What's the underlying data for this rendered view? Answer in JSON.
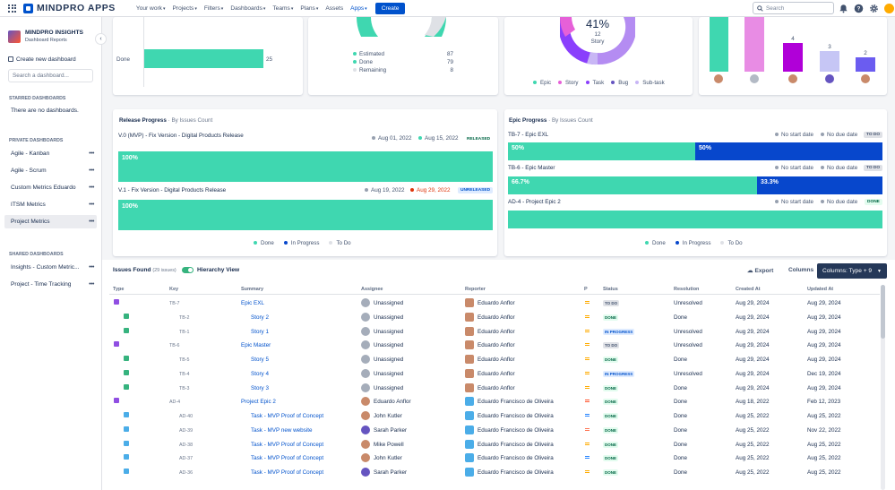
{
  "topbar": {
    "brand": "MINDPRO APPS",
    "nav": [
      "Your work",
      "Projects",
      "Filters",
      "Dashboards",
      "Teams",
      "Plans",
      "Assets",
      "Apps"
    ],
    "create": "Create",
    "search": "Search"
  },
  "sidebar": {
    "title": "MINDPRO INSIGHTS",
    "subtitle": "Dashboard Reports",
    "new_dashboard": "Create new dashboard",
    "search_placeholder": "Search a dashboard...",
    "starred_title": "STARRED DASHBOARDS",
    "starred_empty": "There are no dashboards.",
    "private_title": "PRIVATE DASHBOARDS",
    "private_items": [
      "Agile - Kanban",
      "Agile - Scrum",
      "Custom Metrics Eduardo",
      "ITSM Metrics",
      "Project Metrics"
    ],
    "shared_title": "SHARED DASHBOARDS",
    "shared_items": [
      "Insights - Custom Metric...",
      "Project - Time Tracking"
    ]
  },
  "top_cards": {
    "done_label": "Done",
    "done_value": "25",
    "gauge_legend": [
      {
        "label": "Estimated",
        "value": "87"
      },
      {
        "label": "Done",
        "value": "79"
      },
      {
        "label": "Remaining",
        "value": "8"
      }
    ],
    "donut": {
      "percent": "41%",
      "count": "12",
      "label": "Story",
      "legend": [
        "Epic",
        "Story",
        "Task",
        "Bug",
        "Sub-task"
      ]
    },
    "bars": {
      "values": [
        "4",
        "3",
        "2"
      ]
    }
  },
  "release": {
    "title": "Release Progress",
    "by": "· By Issues Count",
    "items": [
      {
        "name": "V.0 (MVP) - Fix Version - Digital Products Release",
        "start": "Aug 01, 2022",
        "end": "Aug 15, 2022",
        "status": "RELEASED",
        "pct": "100%"
      },
      {
        "name": "V.1 - Fix Version - Digital Products Release",
        "start": "Aug 19, 2022",
        "end": "Aug 29, 2022",
        "status": "UNRELEASED",
        "pct": "100%"
      }
    ],
    "legend": [
      "Done",
      "In Progress",
      "To Do"
    ]
  },
  "epic": {
    "title": "Epic Progress",
    "by": "· By Issues Count",
    "items": [
      {
        "name": "TB-7 - Epic EXL",
        "start": "No start date",
        "end": "No due date",
        "status": "TO DO",
        "done": "50%",
        "prog": "50%"
      },
      {
        "name": "TB-6 - Epic Master",
        "start": "No start date",
        "end": "No due date",
        "status": "TO DO",
        "done": "66.7%",
        "prog": "33.3%"
      },
      {
        "name": "AD-4 - Project Epic 2",
        "start": "No start date",
        "end": "No due date",
        "status": "DONE",
        "done": "",
        "prog": ""
      }
    ],
    "legend": [
      "Done",
      "In Progress",
      "To Do"
    ]
  },
  "issues": {
    "title": "Issues Found",
    "count": "(29 issues)",
    "hierarchy": "Hierarchy View",
    "export": "Export",
    "columns": "Columns",
    "columns_btn": "Columns: Type + 9",
    "headers": [
      "Type",
      "Key",
      "Summary",
      "Assignee",
      "Reporter",
      "P",
      "Status",
      "Resolution",
      "Created At",
      "Updated At"
    ],
    "rows": [
      {
        "type": "epic",
        "key": "TB-7",
        "summary": "Epic EXL",
        "indent": 0,
        "assignee": "Unassigned",
        "reporter": "Eduardo Anflor",
        "prio": "medium",
        "status": "TO DO",
        "resolution": "Unresolved",
        "created": "Aug 29, 2024",
        "updated": "Aug 29, 2024"
      },
      {
        "type": "story",
        "key": "TB-2",
        "summary": "Story 2",
        "indent": 1,
        "assignee": "Unassigned",
        "reporter": "Eduardo Anflor",
        "prio": "medium",
        "status": "DONE",
        "resolution": "Done",
        "created": "Aug 29, 2024",
        "updated": "Aug 29, 2024"
      },
      {
        "type": "story",
        "key": "TB-1",
        "summary": "Story 1",
        "indent": 1,
        "assignee": "Unassigned",
        "reporter": "Eduardo Anflor",
        "prio": "medium",
        "status": "IN PROGRESS",
        "resolution": "Unresolved",
        "created": "Aug 29, 2024",
        "updated": "Aug 29, 2024"
      },
      {
        "type": "epic",
        "key": "TB-6",
        "summary": "Epic Master",
        "indent": 0,
        "assignee": "Unassigned",
        "reporter": "Eduardo Anflor",
        "prio": "medium",
        "status": "TO DO",
        "resolution": "Unresolved",
        "created": "Aug 29, 2024",
        "updated": "Aug 29, 2024"
      },
      {
        "type": "story",
        "key": "TB-5",
        "summary": "Story 5",
        "indent": 1,
        "assignee": "Unassigned",
        "reporter": "Eduardo Anflor",
        "prio": "medium",
        "status": "DONE",
        "resolution": "Done",
        "created": "Aug 29, 2024",
        "updated": "Aug 29, 2024"
      },
      {
        "type": "story",
        "key": "TB-4",
        "summary": "Story 4",
        "indent": 1,
        "assignee": "Unassigned",
        "reporter": "Eduardo Anflor",
        "prio": "medium",
        "status": "IN PROGRESS",
        "resolution": "Unresolved",
        "created": "Aug 29, 2024",
        "updated": "Dec 19, 2024"
      },
      {
        "type": "story",
        "key": "TB-3",
        "summary": "Story 3",
        "indent": 1,
        "assignee": "Unassigned",
        "reporter": "Eduardo Anflor",
        "prio": "medium",
        "status": "DONE",
        "resolution": "Done",
        "created": "Aug 29, 2024",
        "updated": "Aug 29, 2024"
      },
      {
        "type": "epic",
        "key": "AD-4",
        "summary": "Project Epic 2",
        "indent": 0,
        "assignee": "Eduardo Anflor",
        "reporter": "Eduardo Francisco de Oliveira",
        "prio": "highest",
        "status": "DONE",
        "resolution": "Done",
        "created": "Aug 18, 2022",
        "updated": "Feb 12, 2023"
      },
      {
        "type": "task",
        "key": "AD-40",
        "summary": "Task - MVP Proof of Concept",
        "indent": 1,
        "assignee": "John Kutler",
        "reporter": "Eduardo Francisco de Oliveira",
        "prio": "lowest",
        "status": "DONE",
        "resolution": "Done",
        "created": "Aug 25, 2022",
        "updated": "Aug 25, 2022"
      },
      {
        "type": "task",
        "key": "AD-39",
        "summary": "Task - MVP new website",
        "indent": 1,
        "assignee": "Sarah Parker",
        "reporter": "Eduardo Francisco de Oliveira",
        "prio": "high",
        "status": "DONE",
        "resolution": "Done",
        "created": "Aug 25, 2022",
        "updated": "Nov 22, 2022"
      },
      {
        "type": "task",
        "key": "AD-38",
        "summary": "Task - MVP Proof of Concept",
        "indent": 1,
        "assignee": "Mike Powell",
        "reporter": "Eduardo Francisco de Oliveira",
        "prio": "medium",
        "status": "DONE",
        "resolution": "Done",
        "created": "Aug 25, 2022",
        "updated": "Aug 25, 2022"
      },
      {
        "type": "task",
        "key": "AD-37",
        "summary": "Task - MVP Proof of Concept",
        "indent": 1,
        "assignee": "John Kutler",
        "reporter": "Eduardo Francisco de Oliveira",
        "prio": "low",
        "status": "DONE",
        "resolution": "Done",
        "created": "Aug 25, 2022",
        "updated": "Aug 25, 2022"
      },
      {
        "type": "task",
        "key": "AD-36",
        "summary": "Task - MVP Proof of Concept",
        "indent": 1,
        "assignee": "Sarah Parker",
        "reporter": "Eduardo Francisco de Oliveira",
        "prio": "medium",
        "status": "DONE",
        "resolution": "Done",
        "created": "Aug 25, 2022",
        "updated": "Aug 25, 2022"
      }
    ]
  },
  "colors": {
    "teal": "#3fd7b0",
    "blue": "#0747cc",
    "purple": "#8a3ffc",
    "primary": "#0052cc"
  }
}
